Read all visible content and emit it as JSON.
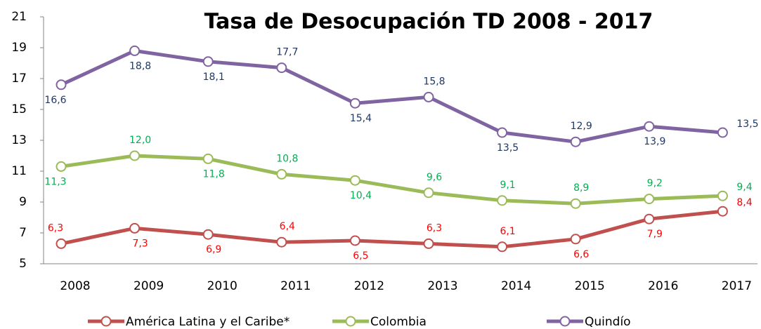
{
  "chart_data": {
    "type": "line",
    "title": "Tasa de Desocupación TD 2008 - 2017",
    "categories": [
      "2008",
      "2009",
      "2010",
      "2011",
      "2012",
      "2013",
      "2014",
      "2015",
      "2016",
      "2017"
    ],
    "series": [
      {
        "name": "América Latina y el Caribe*",
        "color": "#c0504d",
        "label_color": "#ff0000",
        "values": [
          6.3,
          7.3,
          6.9,
          6.4,
          6.5,
          6.3,
          6.1,
          6.6,
          7.9,
          8.4
        ],
        "value_labels": [
          "6,3",
          "7,3",
          "6,9",
          "6,4",
          "6,5",
          "6,3",
          "6,1",
          "6,6",
          "7,9",
          "8,4"
        ]
      },
      {
        "name": "Colombia",
        "color": "#9bbb59",
        "label_color": "#00b050",
        "values": [
          11.3,
          12.0,
          11.8,
          10.8,
          10.4,
          9.6,
          9.1,
          8.9,
          9.2,
          9.4
        ],
        "value_labels": [
          "11,3",
          "12,0",
          "11,8",
          "10,8",
          "10,4",
          "9,6",
          "9,1",
          "8,9",
          "9,2",
          "9,4"
        ]
      },
      {
        "name": "Quindío",
        "color": "#8064a2",
        "label_color": "#1f3864",
        "values": [
          16.6,
          18.8,
          18.1,
          17.7,
          15.4,
          15.8,
          13.5,
          12.9,
          13.9,
          13.5
        ],
        "value_labels": [
          "16,6",
          "18,8",
          "18,1",
          "17,7",
          "15,4",
          "15,8",
          "13,5",
          "12,9",
          "13,9",
          "13,5"
        ]
      }
    ],
    "ylim": [
      5,
      21
    ],
    "yticks": [
      5,
      7,
      9,
      11,
      13,
      15,
      17,
      19,
      21
    ],
    "legend": "bottom"
  }
}
